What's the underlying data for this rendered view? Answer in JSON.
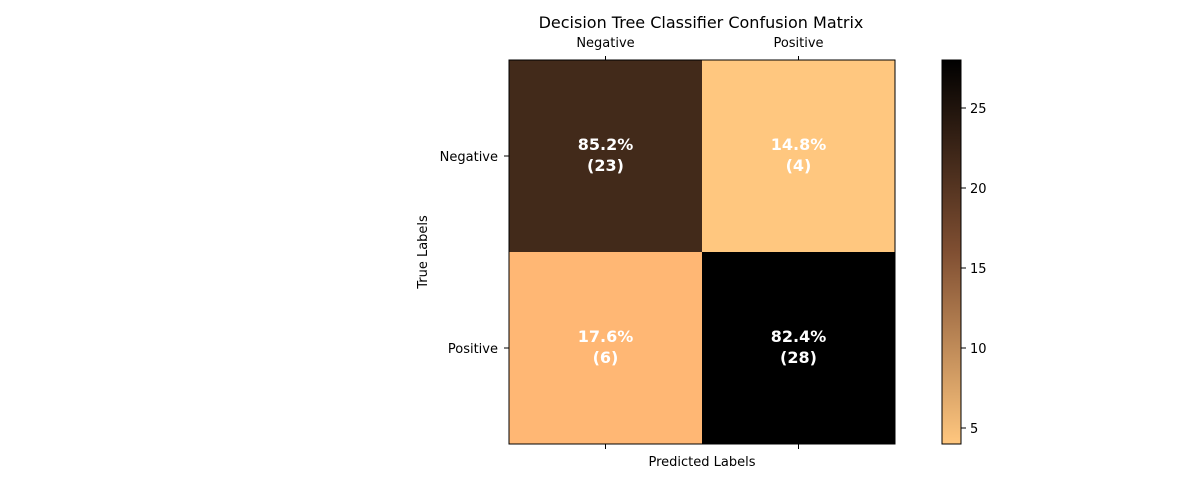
{
  "chart_data": {
    "type": "heatmap",
    "title": "Decision Tree Classifier Confusion Matrix",
    "xlabel": "Predicted Labels",
    "ylabel": "True Labels",
    "x_categories": [
      "Negative",
      "Positive"
    ],
    "y_categories": [
      "Negative",
      "Positive"
    ],
    "counts": [
      [
        23,
        4
      ],
      [
        6,
        28
      ]
    ],
    "percent_labels": [
      [
        "85.2%",
        "14.8%"
      ],
      [
        "17.6%",
        "82.4%"
      ]
    ],
    "count_labels": [
      [
        "(23)",
        "(4)"
      ],
      [
        "(6)",
        "(28)"
      ]
    ],
    "x_tick_position": "top",
    "colormap": "copper_r",
    "colorbar": {
      "range": [
        4,
        28
      ],
      "ticks": [
        5,
        10,
        15,
        20,
        25
      ],
      "tick_labels": [
        "5",
        "10",
        "15",
        "20",
        "25"
      ],
      "color_low": "#ffc77f",
      "color_high": "#000000"
    },
    "grid": false
  }
}
